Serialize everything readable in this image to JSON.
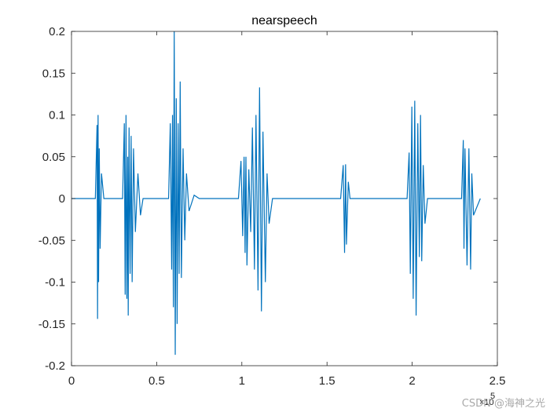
{
  "chart_data": {
    "type": "line",
    "title": "nearspeech",
    "xlabel": "",
    "ylabel": "",
    "xlim": [
      0,
      250000
    ],
    "ylim": [
      -0.2,
      0.2
    ],
    "x_exponent_label": "×10",
    "x_exponent_power": "5",
    "x_ticks": [
      0,
      50000,
      100000,
      150000,
      200000,
      250000
    ],
    "x_tick_labels": [
      "0",
      "0.5",
      "1",
      "1.5",
      "2",
      "2.5"
    ],
    "y_ticks": [
      -0.2,
      -0.15,
      -0.1,
      -0.05,
      0,
      0.05,
      0.1,
      0.15,
      0.2
    ],
    "y_tick_labels": [
      "-0.2",
      "-0.15",
      "-0.1",
      "-0.05",
      "0",
      "0.05",
      "0.1",
      "0.15",
      "0.2"
    ],
    "grid": false,
    "legend": "none",
    "series": [
      {
        "color": "#0072BD",
        "x_range": [
          0,
          240000
        ],
        "x": [
          0,
          14000,
          15000,
          15300,
          15600,
          15900,
          16300,
          16800,
          17600,
          19000,
          30000,
          31000,
          31500,
          32000,
          32500,
          33000,
          33300,
          33800,
          34400,
          35000,
          35600,
          36400,
          37500,
          39000,
          40500,
          42000,
          57000,
          58000,
          58800,
          59300,
          59800,
          60300,
          60900,
          61500,
          62000,
          62600,
          63200,
          63800,
          64500,
          65500,
          66500,
          67500,
          69000,
          72000,
          75000,
          98000,
          99500,
          100500,
          101300,
          101900,
          102400,
          103000,
          104100,
          105200,
          106200,
          107400,
          108300,
          109500,
          110400,
          111500,
          112400,
          113800,
          114800,
          116000,
          118000,
          158000,
          159500,
          160300,
          160900,
          161400,
          162500,
          163500,
          197000,
          198200,
          198900,
          199800,
          200600,
          201500,
          202300,
          203300,
          204200,
          204900,
          205600,
          206500,
          207500,
          209000,
          229000,
          230000,
          230400,
          231000,
          232200,
          233300,
          234300,
          235000,
          236000,
          240000
        ],
        "values": [
          0,
          0,
          0.088,
          -0.144,
          0.1,
          -0.1,
          0.06,
          -0.06,
          0.03,
          0,
          0,
          0.09,
          -0.115,
          0.1,
          -0.12,
          0.05,
          -0.14,
          0.085,
          -0.09,
          0.075,
          -0.1,
          0.06,
          -0.04,
          0.03,
          -0.02,
          0,
          0,
          0.09,
          -0.085,
          0.1,
          -0.13,
          0.2,
          -0.187,
          0.12,
          -0.15,
          0.09,
          -0.09,
          0.14,
          -0.095,
          0.06,
          -0.05,
          0.03,
          -0.015,
          0.004,
          0,
          0,
          0.045,
          -0.045,
          0.05,
          -0.065,
          0.05,
          -0.08,
          0.035,
          -0.04,
          0.085,
          -0.085,
          0.1,
          -0.11,
          0.133,
          -0.135,
          0.08,
          -0.1,
          0.03,
          -0.03,
          0,
          0,
          0.04,
          -0.065,
          0.041,
          -0.055,
          0.02,
          0,
          0,
          0.055,
          -0.09,
          0.11,
          -0.12,
          0.117,
          -0.14,
          0.09,
          -0.07,
          0.1,
          -0.075,
          0.04,
          -0.03,
          0,
          0,
          0.07,
          -0.06,
          0.06,
          -0.08,
          0.06,
          -0.085,
          0.03,
          -0.02,
          0
        ]
      }
    ]
  },
  "watermark": "CSDN @海神之光"
}
